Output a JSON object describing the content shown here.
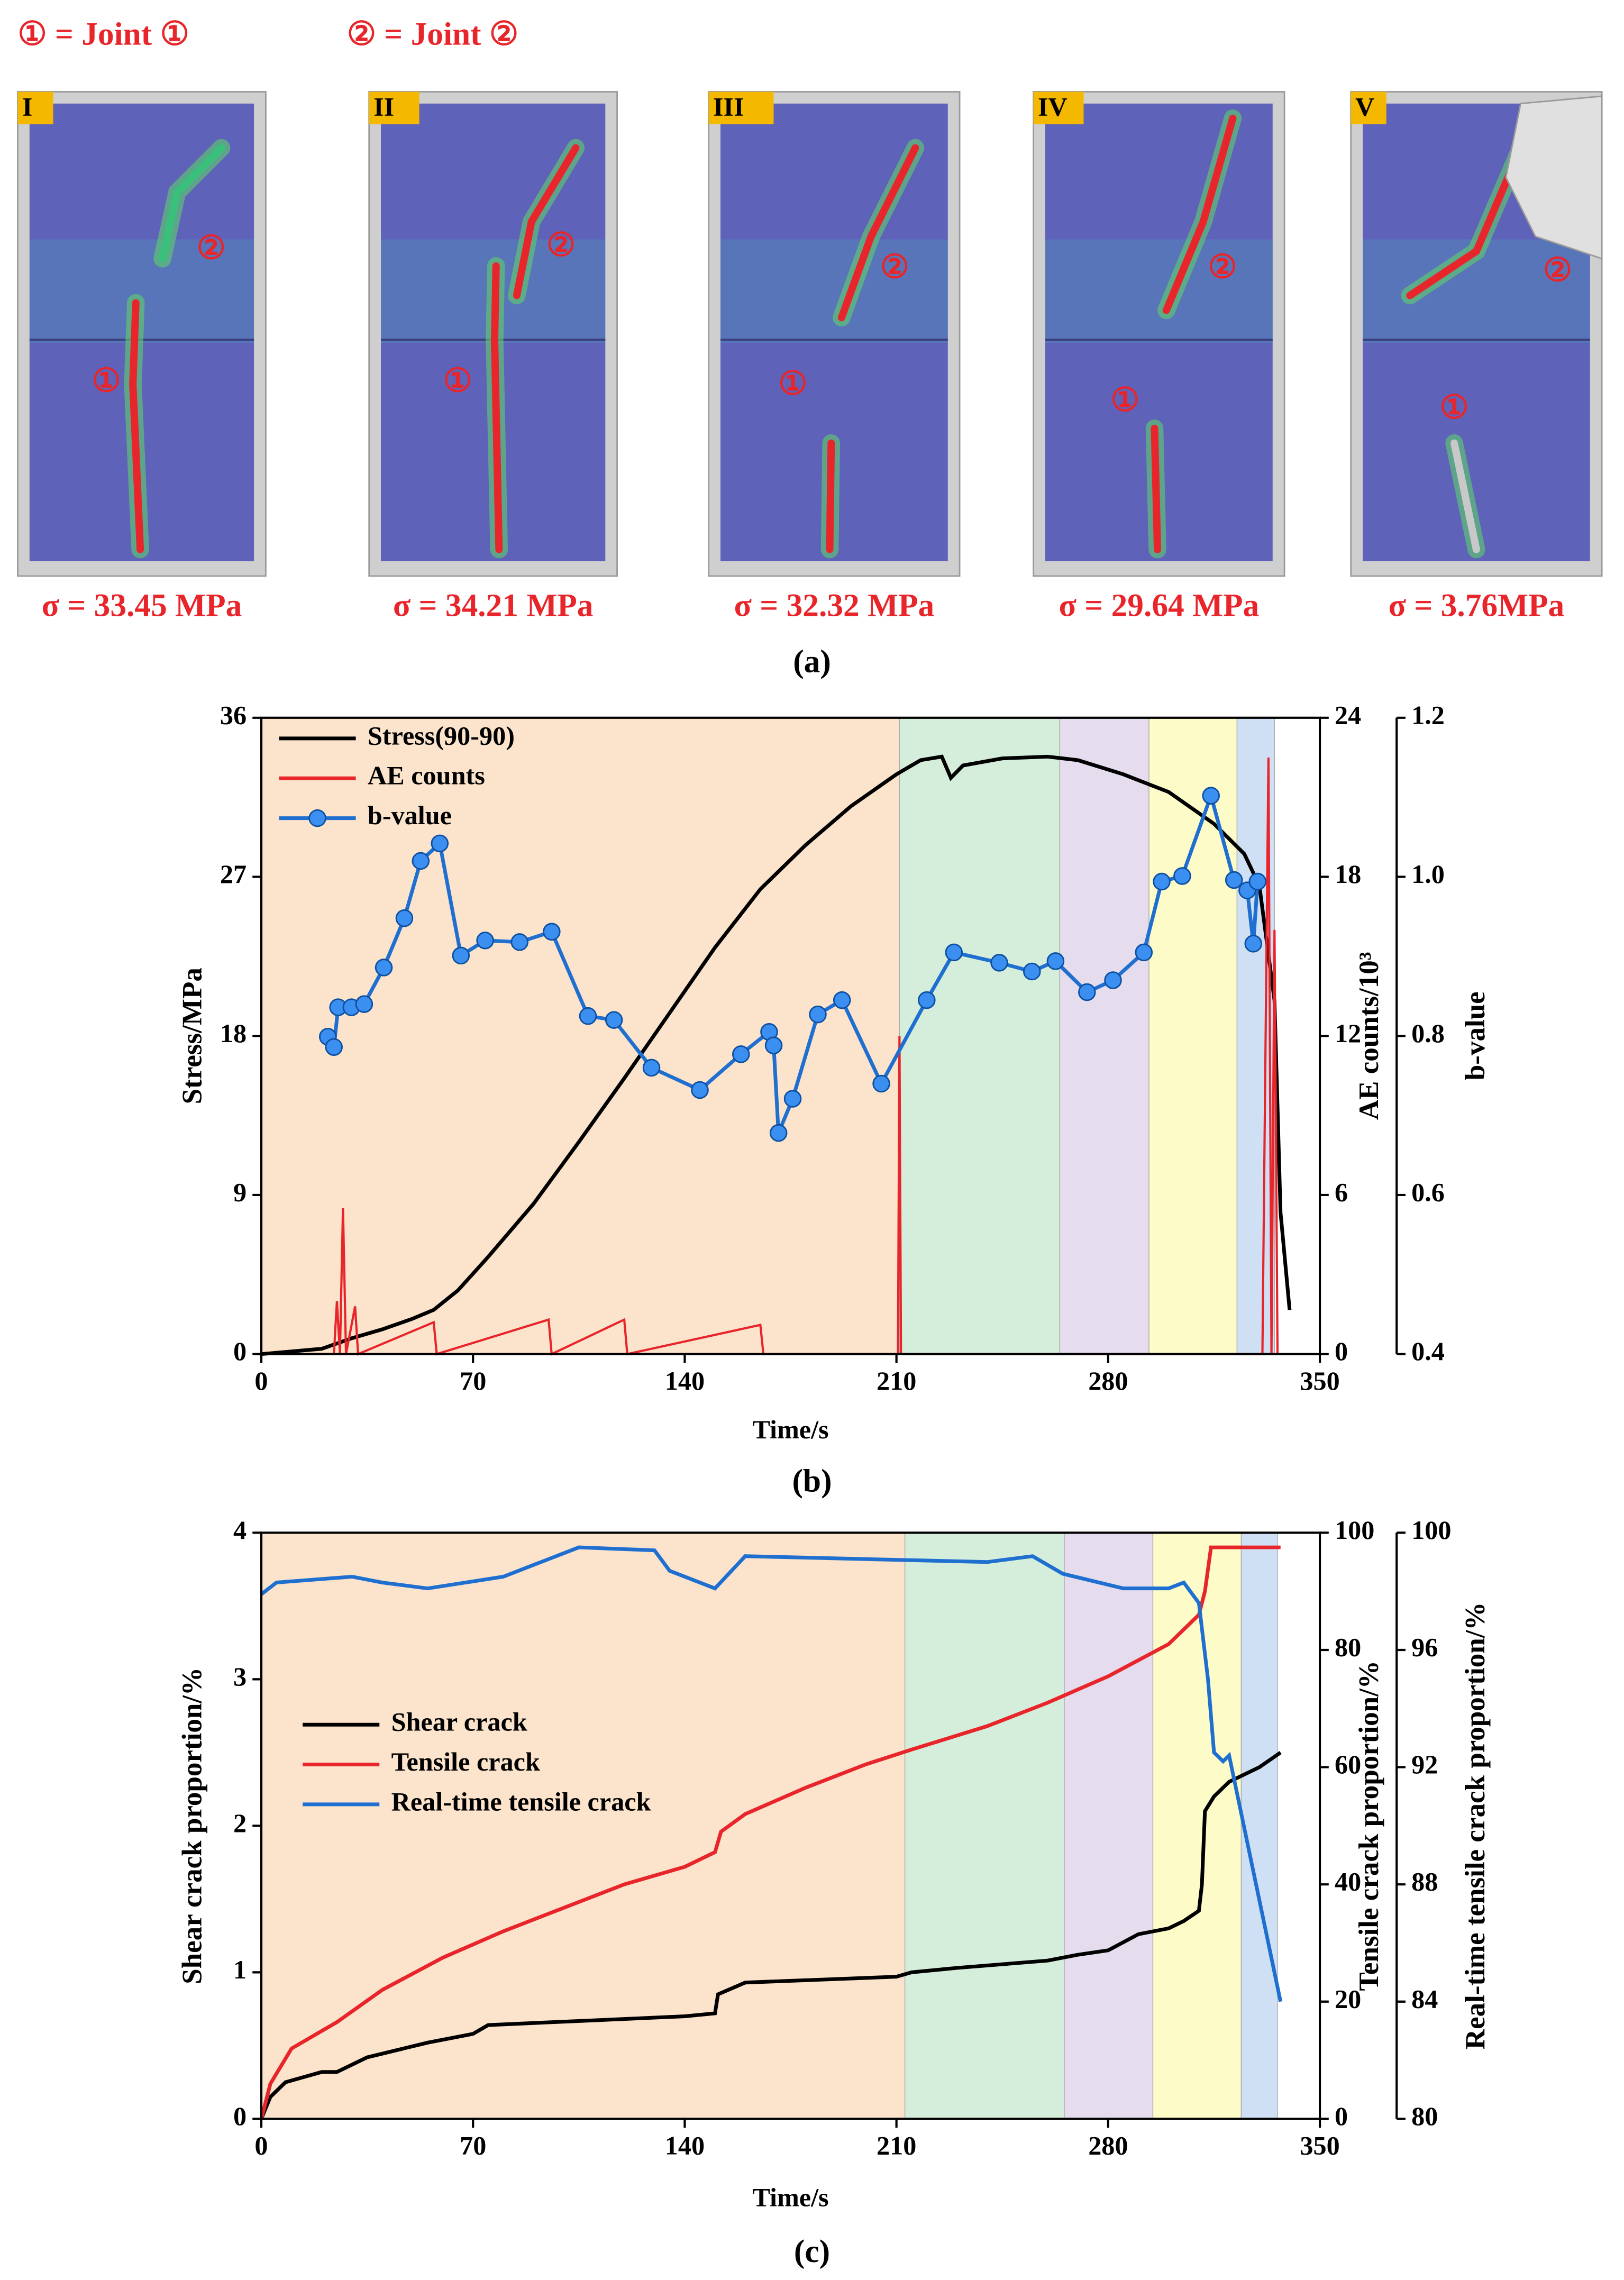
{
  "panel_a": {
    "legend": [
      "① = Joint ①",
      "② =  Joint  ②"
    ],
    "markers": [
      "①",
      "②"
    ],
    "panels": [
      {
        "label": "I",
        "stress": "σ = 33.45 MPa"
      },
      {
        "label": "II",
        "stress": "σ = 34.21 MPa"
      },
      {
        "label": "III",
        "stress": "σ = 32.32 MPa"
      },
      {
        "label": "IV",
        "stress": "σ = 29.64 MPa"
      },
      {
        "label": "V",
        "stress": "σ = 3.76MPa"
      }
    ],
    "caption": "(a)"
  },
  "chart_data": [
    {
      "type": "line",
      "caption": "(b)",
      "x_label": "Time/s",
      "y_label": "Stress/MPa",
      "y2_label": "AE counts/10³",
      "y3_label": "b-value",
      "xlim": [
        0,
        350
      ],
      "xticks": [
        0,
        70,
        140,
        210,
        280,
        350
      ],
      "ylim": [
        0,
        36
      ],
      "yticks": [
        0,
        9,
        18,
        27,
        36
      ],
      "y2lim": [
        0,
        24
      ],
      "y2ticks": [
        0,
        6,
        12,
        18,
        24
      ],
      "y3lim": [
        0.4,
        1.2
      ],
      "y3ticks": [
        0.4,
        0.6,
        0.8,
        {
          "value": 1,
          "label": "1.0"
        },
        1.2
      ],
      "legend": "upper left",
      "regions": [
        {
          "x": [
            0,
            211
          ],
          "color": "#fbe3cc"
        },
        {
          "x": [
            211,
            264
          ],
          "color": "#d5eedc"
        },
        {
          "x": [
            264,
            293.5
          ],
          "color": "#e5dcee"
        },
        {
          "x": [
            293.5,
            322.6
          ],
          "color": "#fdfcc9"
        },
        {
          "x": [
            322.6,
            335
          ],
          "color": "#cfe0f5"
        }
      ],
      "series": [
        {
          "name": "Stress(90-90)",
          "color": "#000000",
          "axis": "y",
          "x": [
            0,
            20,
            30,
            40,
            50,
            57,
            65,
            75,
            90,
            105,
            120,
            135,
            150,
            165,
            180,
            195,
            210,
            218,
            225,
            228,
            232,
            245,
            260,
            270,
            285,
            300,
            315,
            325,
            330,
            335,
            337,
            340
          ],
          "values": [
            0,
            0.3,
            0.9,
            1.4,
            2,
            2.5,
            3.6,
            5.5,
            8.5,
            12,
            15.6,
            19.3,
            23,
            26.3,
            28.8,
            31,
            32.8,
            33.6,
            33.8,
            32.6,
            33.3,
            33.7,
            33.8,
            33.6,
            32.8,
            31.8,
            30,
            28.3,
            26.5,
            20,
            8,
            2.5
          ]
        },
        {
          "name": "AE counts",
          "color": "#e8252a",
          "axis": "y2",
          "x": [
            0,
            24,
            25,
            26,
            27,
            28,
            31,
            32,
            57,
            58,
            95,
            96,
            120,
            121,
            165,
            166,
            210.5,
            211,
            211.5,
            331,
            333,
            334,
            335,
            336
          ],
          "values": [
            0,
            0,
            2,
            0,
            5.5,
            0,
            1.8,
            0,
            1.2,
            0,
            1.3,
            0,
            1.3,
            0,
            1.1,
            0,
            0,
            12,
            0,
            0,
            22.5,
            0,
            16,
            0
          ]
        },
        {
          "name": "b-value",
          "color": "#1f6fd0",
          "axis": "y3",
          "marker": true,
          "x": [
            22,
            24,
            25.4,
            29.8,
            34,
            40.5,
            47.3,
            52.7,
            59,
            66,
            74,
            85.4,
            96,
            108,
            116.6,
            129,
            145,
            158.6,
            167.9,
            169.4,
            171,
            175.7,
            184,
            192,
            205,
            220,
            229,
            244,
            254.8,
            262.6,
            273,
            281.6,
            291.8,
            297.7,
            304.5,
            314,
            321.6,
            326,
            328,
            329.4
          ],
          "values": [
            0.799,
            0.786,
            0.836,
            0.836,
            0.84,
            0.886,
            0.948,
            1.02,
            1.042,
            0.901,
            0.92,
            0.918,
            0.931,
            0.825,
            0.82,
            0.76,
            0.732,
            0.777,
            0.805,
            0.788,
            0.678,
            0.721,
            0.827,
            0.845,
            0.74,
            0.845,
            0.905,
            0.892,
            0.881,
            0.894,
            0.855,
            0.87,
            0.905,
            0.994,
            1.001,
            1.102,
            0.996,
            0.983,
            0.916,
            0.994
          ]
        }
      ]
    },
    {
      "type": "line",
      "caption": "(c)",
      "x_label": "Time/s",
      "y_label": "Shear crack proportion/%",
      "y2_label": "Tensile crack proportion/%",
      "y3_label": "Real-time tensile crack proportion/%",
      "xlim": [
        0,
        350
      ],
      "xticks": [
        0,
        70,
        140,
        210,
        280,
        350
      ],
      "ylim": [
        0,
        4
      ],
      "yticks": [
        0,
        1,
        2,
        3,
        4
      ],
      "y2lim": [
        0,
        100
      ],
      "y2ticks": [
        0,
        20,
        40,
        60,
        80,
        100
      ],
      "y3lim": [
        80,
        100
      ],
      "y3ticks": [
        80,
        84,
        88,
        92,
        96,
        100
      ],
      "legend": "center left",
      "regions": [
        {
          "x": [
            0,
            212.8
          ],
          "color": "#fbe3cc"
        },
        {
          "x": [
            212.8,
            265.5
          ],
          "color": "#d5eedc"
        },
        {
          "x": [
            265.5,
            294.8
          ],
          "color": "#e5dcee"
        },
        {
          "x": [
            294.8,
            324
          ],
          "color": "#fdfcc9"
        },
        {
          "x": [
            324,
            336
          ],
          "color": "#cfe0f5"
        }
      ],
      "series": [
        {
          "name": "Shear crack",
          "color": "#000000",
          "axis": "y",
          "x": [
            0,
            3,
            8,
            20,
            25,
            35,
            55,
            70,
            75,
            140,
            150,
            151,
            160,
            210,
            215,
            230,
            260,
            270,
            280,
            290,
            300,
            305,
            310,
            311,
            312,
            315,
            320,
            330,
            337
          ],
          "values": [
            0,
            0.15,
            0.25,
            0.32,
            0.32,
            0.42,
            0.52,
            0.58,
            0.64,
            0.7,
            0.72,
            0.85,
            0.93,
            0.97,
            1,
            1.03,
            1.08,
            1.12,
            1.15,
            1.26,
            1.3,
            1.35,
            1.42,
            1.6,
            2.1,
            2.2,
            2.3,
            2.4,
            2.5
          ]
        },
        {
          "name": "Tensile crack",
          "color": "#e8252a",
          "axis": "y2",
          "x": [
            0,
            3,
            10,
            25,
            40,
            60,
            80,
            100,
            120,
            140,
            150,
            152,
            160,
            180,
            200,
            215,
            240,
            260,
            280,
            300,
            310,
            312,
            314,
            337
          ],
          "values": [
            0,
            6,
            12,
            16.5,
            22,
            27.5,
            32,
            36,
            40,
            43,
            45.5,
            49,
            52,
            56.5,
            60.5,
            63,
            67,
            71,
            75.5,
            81,
            86,
            90,
            97.5,
            97.5
          ]
        },
        {
          "name": "Real-time tensile crack",
          "color": "#1f6fd0",
          "axis": "y3",
          "x": [
            0,
            5,
            30,
            40,
            55,
            80,
            105,
            130,
            135,
            150,
            160,
            200,
            240,
            255,
            265,
            285,
            300,
            305,
            310,
            313,
            315,
            318,
            320,
            337
          ],
          "values": [
            97.9,
            98.3,
            98.5,
            98.3,
            98.1,
            98.5,
            99.5,
            99.4,
            98.7,
            98.1,
            99.2,
            99.1,
            99,
            99.2,
            98.6,
            98.1,
            98.1,
            98.3,
            97.6,
            95,
            92.5,
            92.2,
            92.4,
            84
          ]
        }
      ]
    }
  ]
}
